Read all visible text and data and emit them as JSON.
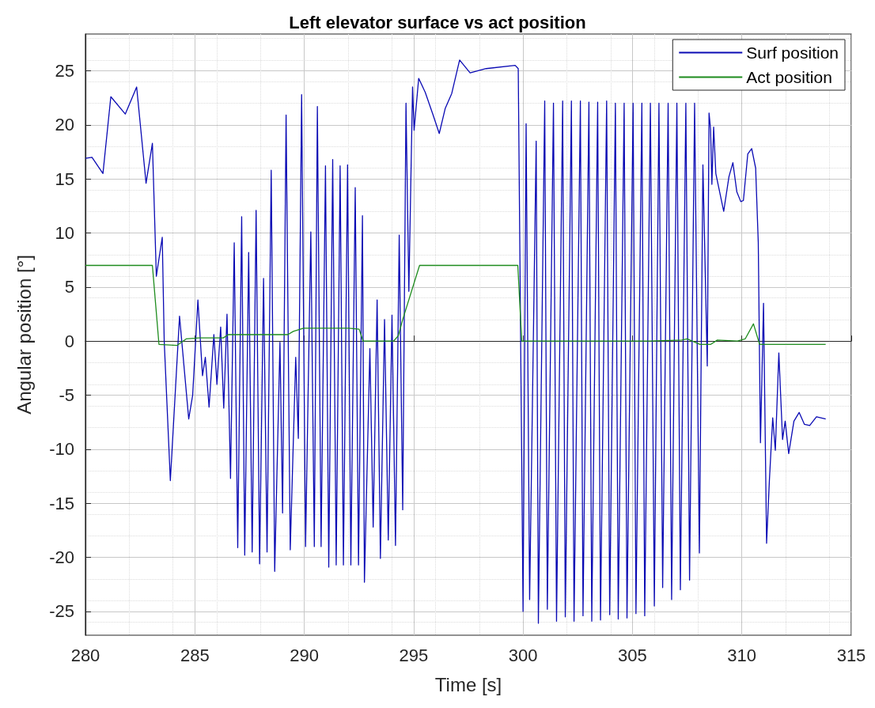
{
  "chart_data": {
    "type": "line",
    "title": "Left elevator surface vs act position",
    "xlabel": "Time [s]",
    "ylabel": "Angular position [°]",
    "xlim": [
      280,
      315
    ],
    "xticks": [
      280,
      285,
      290,
      295,
      300,
      305,
      310,
      315
    ],
    "ylim": [
      -27.2,
      28.4
    ],
    "yticks": [
      -25,
      -20,
      -15,
      -10,
      -5,
      0,
      5,
      10,
      15,
      20,
      25
    ],
    "grid": true,
    "legend": "top right",
    "marker": "none",
    "series": [
      {
        "name": "Surf position",
        "color": "#0a0ab4",
        "x": [
          280,
          280.3,
          280.8,
          281.16,
          281.82,
          282.34,
          282.77,
          283.06,
          283.24,
          283.51,
          283.6,
          283.88,
          284.3,
          284.72,
          284.9,
          285.14,
          285.35,
          285.48,
          285.65,
          285.87,
          286.01,
          286.18,
          286.32,
          286.47,
          286.63,
          286.8,
          286.96,
          287.14,
          287.28,
          287.46,
          287.62,
          287.8,
          287.96,
          288.14,
          288.3,
          288.49,
          288.65,
          288.89,
          289.01,
          289.17,
          289.36,
          289.61,
          289.73,
          289.88,
          290.06,
          290.3,
          290.46,
          290.6,
          290.77,
          290.97,
          291.12,
          291.3,
          291.46,
          291.64,
          291.79,
          291.98,
          292.13,
          292.33,
          292.48,
          292.66,
          292.75,
          293.0,
          293.15,
          293.33,
          293.48,
          293.67,
          293.84,
          294.01,
          294.17,
          294.34,
          294.5,
          294.65,
          294.78,
          294.95,
          295.02,
          295.23,
          295.53,
          295.89,
          296.17,
          296.44,
          296.74,
          297.1,
          297.58,
          298.31,
          299.64,
          299.78,
          300.0,
          300.14,
          300.3,
          300.6,
          300.7,
          300.99,
          301.11,
          301.39,
          301.53,
          301.81,
          301.93,
          302.21,
          302.33,
          302.62,
          302.74,
          303.01,
          303.14,
          303.41,
          303.54,
          303.82,
          303.96,
          304.22,
          304.35,
          304.62,
          304.75,
          305.03,
          305.16,
          305.43,
          305.56,
          305.82,
          306.0,
          306.21,
          306.38,
          306.63,
          306.79,
          307.03,
          307.19,
          307.44,
          307.61,
          307.84,
          308.06,
          308.22,
          308.42,
          308.5,
          308.57,
          308.63,
          308.71,
          308.81,
          309.17,
          309.41,
          309.59,
          309.77,
          309.95,
          310.07,
          310.27,
          310.45,
          310.63,
          310.75,
          310.85,
          310.99,
          311.13,
          311.26,
          311.41,
          311.53,
          311.69,
          311.86,
          311.98,
          312.14,
          312.38,
          312.62,
          312.86,
          313.1,
          313.41,
          313.83
        ],
        "values": [
          16.9,
          17.0,
          15.5,
          22.6,
          21.0,
          23.5,
          14.6,
          18.3,
          6.0,
          9.6,
          0,
          -12.9,
          2.3,
          -7.2,
          -5,
          3.8,
          -3.2,
          -1.5,
          -6.1,
          0.6,
          -4,
          1.3,
          -6.2,
          2.5,
          -12.7,
          9.1,
          -19.1,
          11.5,
          -19.8,
          8.2,
          -19.5,
          12.1,
          -20.6,
          5.8,
          -19.5,
          15.8,
          -21.3,
          -0.1,
          -15.9,
          20.9,
          -19.3,
          -1.5,
          -9,
          22.8,
          -19,
          10.1,
          -19,
          21.7,
          -19,
          16.2,
          -20.9,
          16.8,
          -20.7,
          16.2,
          -20.7,
          16.3,
          -20.7,
          14.2,
          -20.7,
          11.6,
          -22.3,
          -0.7,
          -17.2,
          3.8,
          -20.1,
          2.0,
          -18.4,
          2.4,
          -18.9,
          9.8,
          -15.6,
          22,
          4.6,
          23.5,
          19.5,
          24.3,
          23.0,
          20.9,
          19.2,
          21.5,
          22.9,
          26.0,
          24.8,
          25.2,
          25.5,
          25.2,
          -25.0,
          20.1,
          -23.9,
          18.5,
          -26.1,
          22.2,
          -24.8,
          22.0,
          -25.9,
          22.2,
          -25.5,
          22.2,
          -25.9,
          22.2,
          -25.4,
          22.1,
          -25.9,
          22.1,
          -25.8,
          22.2,
          -25.3,
          22.0,
          -25.7,
          22,
          -25.6,
          22,
          -25.2,
          22,
          -25.4,
          22,
          -24.5,
          22,
          -22.8,
          22,
          -23.9,
          22,
          -23.0,
          22,
          -22.1,
          22,
          -19.6,
          16.3,
          -2.3,
          21.1,
          19.6,
          14.5,
          19.8,
          15.5,
          12.0,
          15.2,
          16.5,
          13.8,
          12.9,
          13.0,
          17.3,
          17.8,
          16.0,
          9.1,
          -9.4,
          3.5,
          -18.7,
          -12.8,
          -7.1,
          -10.1,
          -1.1,
          -9.1,
          -7.4,
          -10.4,
          -7.4,
          -6.6,
          -7.7,
          -7.8,
          -7.0,
          -7.2
        ]
      },
      {
        "name": "Act position",
        "color": "#1e8c1e",
        "x": [
          280,
          283.06,
          283.36,
          284.18,
          284.6,
          285.2,
          286.3,
          286.53,
          289.25,
          289.5,
          289.97,
          292.03,
          292.51,
          292.69,
          294.08,
          294.3,
          294.5,
          295.27,
          299.76,
          299.94,
          305.8,
          307.25,
          307.5,
          308.09,
          308.58,
          308.88,
          309.8,
          310.15,
          310.53,
          310.81,
          313.83
        ],
        "values": [
          7.0,
          7.0,
          -0.3,
          -0.4,
          0.2,
          0.3,
          0.3,
          0.6,
          0.6,
          0.9,
          1.2,
          1.2,
          1.1,
          0.0,
          0.0,
          0.5,
          2.0,
          7.0,
          7.0,
          0.0,
          0.0,
          0.1,
          0.2,
          -0.3,
          -0.3,
          0.1,
          0.0,
          0.2,
          1.6,
          -0.3,
          -0.3
        ]
      }
    ]
  }
}
